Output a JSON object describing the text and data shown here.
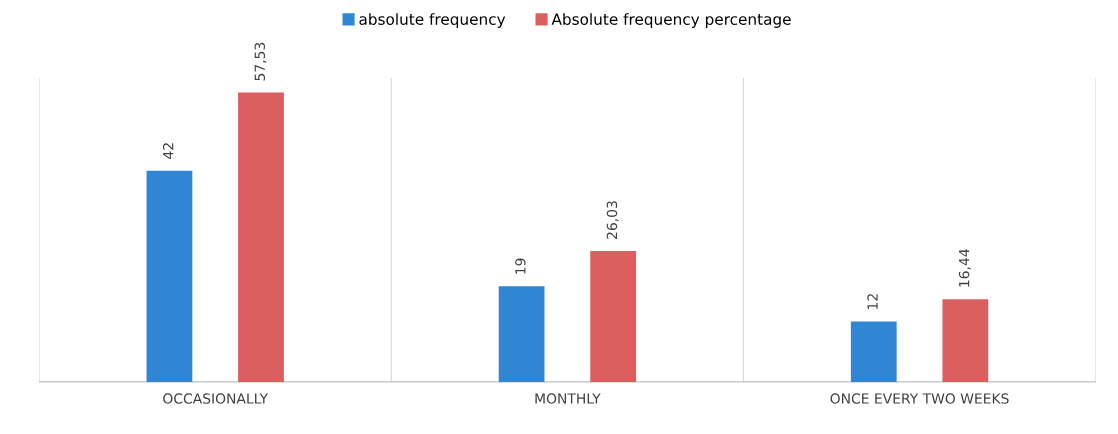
{
  "chart_data": {
    "type": "bar",
    "categories": [
      "OCCASIONALLY",
      "MONTHLY",
      "ONCE EVERY TWO WEEKS"
    ],
    "series": [
      {
        "name": "absolute frequency",
        "color": "#2e86d4",
        "values": [
          42,
          19,
          12
        ],
        "value_labels": [
          "42",
          "19",
          "12"
        ]
      },
      {
        "name": "Absolute frequency percentage",
        "color": "#d9605e",
        "values": [
          57.53,
          26.03,
          16.44
        ],
        "value_labels": [
          "57,53",
          "26,03",
          "16,44"
        ]
      }
    ],
    "grid": "x",
    "legend": "top"
  }
}
